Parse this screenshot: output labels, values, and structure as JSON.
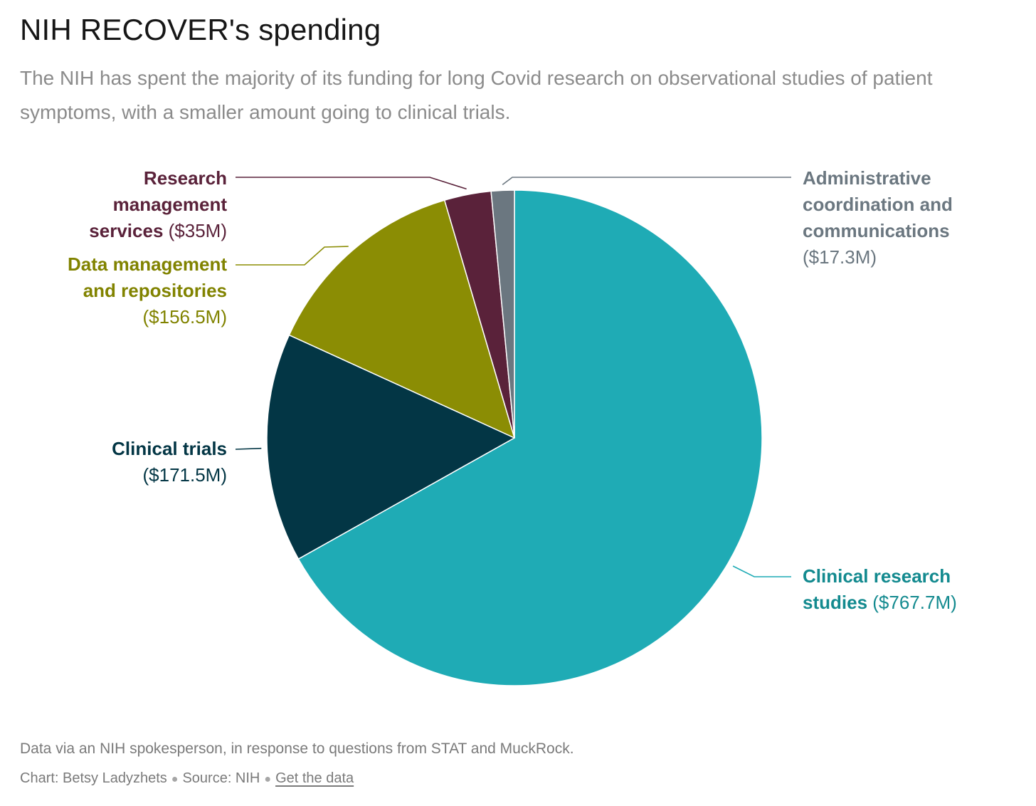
{
  "title": "NIH RECOVER's spending",
  "subtitle": "The NIH has spent the majority of its funding for long Covid research on observational studies of patient symptoms, with a smaller amount going to clinical trials.",
  "chart_data": {
    "type": "pie",
    "title": "NIH RECOVER's spending",
    "unit": "USD millions",
    "slices": [
      {
        "name": "Clinical research studies",
        "value": 767.7,
        "value_label": "($767.7M)",
        "color": "#1fabb5",
        "label_color": "#138a8f",
        "label_bold": "Clinical research studies",
        "label_bold_lines": [
          "Clinical research",
          "studies"
        ]
      },
      {
        "name": "Clinical trials",
        "value": 171.5,
        "value_label": "($171.5M)",
        "color": "#033645",
        "label_color": "#033645",
        "label_bold": "Clinical trials",
        "label_bold_lines": [
          "Clinical trials"
        ]
      },
      {
        "name": "Data management and repositories",
        "value": 156.5,
        "value_label": "($156.5M)",
        "color": "#8b8d04",
        "label_color": "#818300",
        "label_bold": "Data management and repositories",
        "label_bold_lines": [
          "Data management",
          "and repositories"
        ]
      },
      {
        "name": "Research management services",
        "value": 35.0,
        "value_label": "($35M)",
        "color": "#5a223a",
        "label_color": "#5a223a",
        "label_bold": "Research management services",
        "label_bold_lines": [
          "Research",
          "management",
          "services"
        ]
      },
      {
        "name": "Administrative coordination and communications",
        "value": 17.3,
        "value_label": "($17.3M)",
        "color": "#6b7780",
        "label_color": "#6b7780",
        "label_bold": "Administrative coordination and communications",
        "label_bold_lines": [
          "Administrative",
          "coordination and",
          "communications"
        ]
      }
    ]
  },
  "footer": {
    "note": "Data via an NIH spokesperson, in response to questions from STAT and MuckRock.",
    "credit_chart": "Chart: Betsy Ladyzhets",
    "credit_source": "Source: NIH",
    "separator": "●",
    "link": "Get the data"
  }
}
